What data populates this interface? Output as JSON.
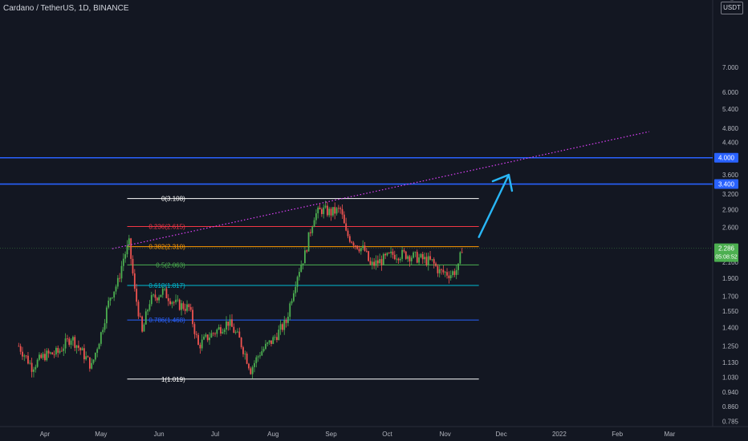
{
  "header": {
    "title": "Cardano / TetherUS, 1D, BINANCE",
    "currency_label": "USDT"
  },
  "colors": {
    "background": "#131722",
    "up_candle": "#26a69a",
    "green_candle": "#4caf50",
    "down_candle": "#ef5350",
    "horizontal_line": "#2962ff",
    "trend_line": "#e040fb",
    "arrow": "#29b6f6",
    "axis_text": "#b2b5be"
  },
  "chart_data": {
    "type": "candlestick",
    "y_scale": "log",
    "ylim": [
      0.76,
      10.6
    ],
    "y_ticks": [
      "7.000",
      "6.000",
      "5.400",
      "4.800",
      "4.400",
      "3.600",
      "3.200",
      "2.900",
      "2.600",
      "2.100",
      "1.900",
      "1.700",
      "1.550",
      "1.400",
      "1.250",
      "1.130",
      "1.030",
      "0.940",
      "0.860",
      "0.785"
    ],
    "x_ticks": [
      "Apr",
      "May",
      "Jun",
      "Jul",
      "Aug",
      "Sep",
      "Oct",
      "Nov",
      "Dec",
      "2022",
      "Feb",
      "Mar"
    ],
    "horizontal_levels": [
      {
        "price": 4.0,
        "label": "4.000"
      },
      {
        "price": 3.4,
        "label": "3.400"
      }
    ],
    "last_price": {
      "label": "2.286",
      "countdown": "05:08:52",
      "value": 2.286
    },
    "fibonacci": [
      {
        "ratio": "0",
        "price": 3.108,
        "label": "0(3.108)",
        "color": "#ffffff"
      },
      {
        "ratio": "0.236",
        "price": 2.615,
        "label": "0.236(2.615)",
        "color": "#f23645"
      },
      {
        "ratio": "0.382",
        "price": 2.31,
        "label": "0.382(2.310)",
        "color": "#ff9800"
      },
      {
        "ratio": "0.5",
        "price": 2.063,
        "label": "0.5(2.063)",
        "color": "#4caf50"
      },
      {
        "ratio": "0.618",
        "price": 1.817,
        "label": "0.618(1.817)",
        "color": "#00bcd4"
      },
      {
        "ratio": "0.786",
        "price": 1.468,
        "label": "0.786(1.468)",
        "color": "#2962ff"
      },
      {
        "ratio": "1",
        "price": 1.019,
        "label": "1(1.019)",
        "color": "#ffffff"
      }
    ],
    "price_path": [
      [
        "2021-03-18",
        1.25
      ],
      [
        "2021-03-25",
        1.1
      ],
      [
        "2021-04-01",
        1.18
      ],
      [
        "2021-04-08",
        1.2
      ],
      [
        "2021-04-15",
        1.32
      ],
      [
        "2021-04-22",
        1.18
      ],
      [
        "2021-04-26",
        1.1
      ],
      [
        "2021-05-01",
        1.35
      ],
      [
        "2021-05-06",
        1.7
      ],
      [
        "2021-05-10",
        1.85
      ],
      [
        "2021-05-13",
        2.15
      ],
      [
        "2021-05-16",
        2.35
      ],
      [
        "2021-05-19",
        1.75
      ],
      [
        "2021-05-23",
        1.35
      ],
      [
        "2021-05-27",
        1.65
      ],
      [
        "2021-06-03",
        1.75
      ],
      [
        "2021-06-10",
        1.62
      ],
      [
        "2021-06-17",
        1.58
      ],
      [
        "2021-06-22",
        1.25
      ],
      [
        "2021-06-27",
        1.32
      ],
      [
        "2021-07-04",
        1.4
      ],
      [
        "2021-07-08",
        1.45
      ],
      [
        "2021-07-14",
        1.3
      ],
      [
        "2021-07-20",
        1.08
      ],
      [
        "2021-07-25",
        1.2
      ],
      [
        "2021-08-01",
        1.3
      ],
      [
        "2021-08-08",
        1.45
      ],
      [
        "2021-08-14",
        1.95
      ],
      [
        "2021-08-18",
        2.2
      ],
      [
        "2021-08-23",
        2.8
      ],
      [
        "2021-08-27",
        2.9
      ],
      [
        "2021-09-01",
        2.85
      ],
      [
        "2021-09-06",
        2.9
      ],
      [
        "2021-09-09",
        2.5
      ],
      [
        "2021-09-14",
        2.35
      ],
      [
        "2021-09-19",
        2.25
      ],
      [
        "2021-09-22",
        2.05
      ],
      [
        "2021-09-28",
        2.12
      ],
      [
        "2021-10-04",
        2.2
      ],
      [
        "2021-10-11",
        2.2
      ],
      [
        "2021-10-18",
        2.15
      ],
      [
        "2021-10-25",
        2.1
      ],
      [
        "2021-10-29",
        1.98
      ],
      [
        "2021-11-04",
        1.95
      ],
      [
        "2021-11-08",
        2.02
      ],
      [
        "2021-11-10",
        2.3
      ]
    ]
  }
}
